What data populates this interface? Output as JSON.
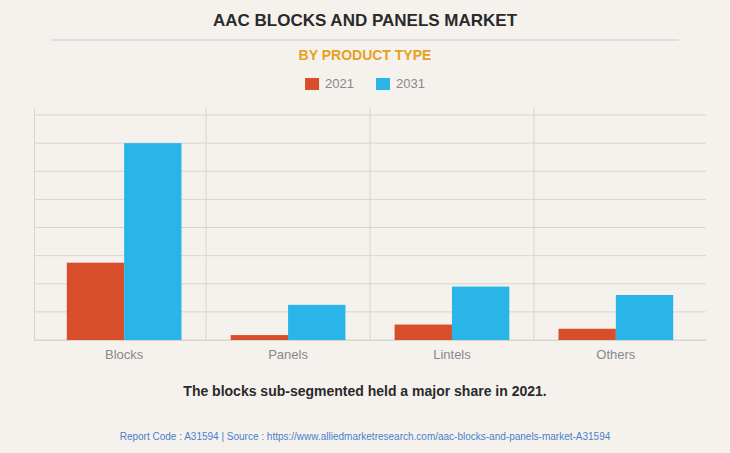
{
  "chart_data": {
    "type": "bar",
    "title": "AAC BLOCKS AND PANELS MARKET",
    "subtitle": "BY PRODUCT TYPE",
    "categories": [
      "Blocks",
      "Panels",
      "Lintels",
      "Others"
    ],
    "series": [
      {
        "name": "2021",
        "color": "#d94e2a",
        "values": [
          5.5,
          0.35,
          1.1,
          0.8
        ]
      },
      {
        "name": "2031",
        "color": "#29b5e8",
        "values": [
          14.0,
          2.5,
          3.8,
          3.2
        ]
      }
    ],
    "ylim": [
      0,
      16.5
    ],
    "yticks": [
      0,
      2,
      4,
      6,
      8,
      10,
      12,
      14,
      16
    ],
    "grid": true,
    "legend": "top",
    "tick_labels": "x",
    "annotations": [
      "The blocks sub-segmented held a major share in 2021.",
      "Report Code : A31594  |  Source : https://www.alliedmarketresearch.com/aac-blocks-and-panels-market-A31594"
    ]
  }
}
